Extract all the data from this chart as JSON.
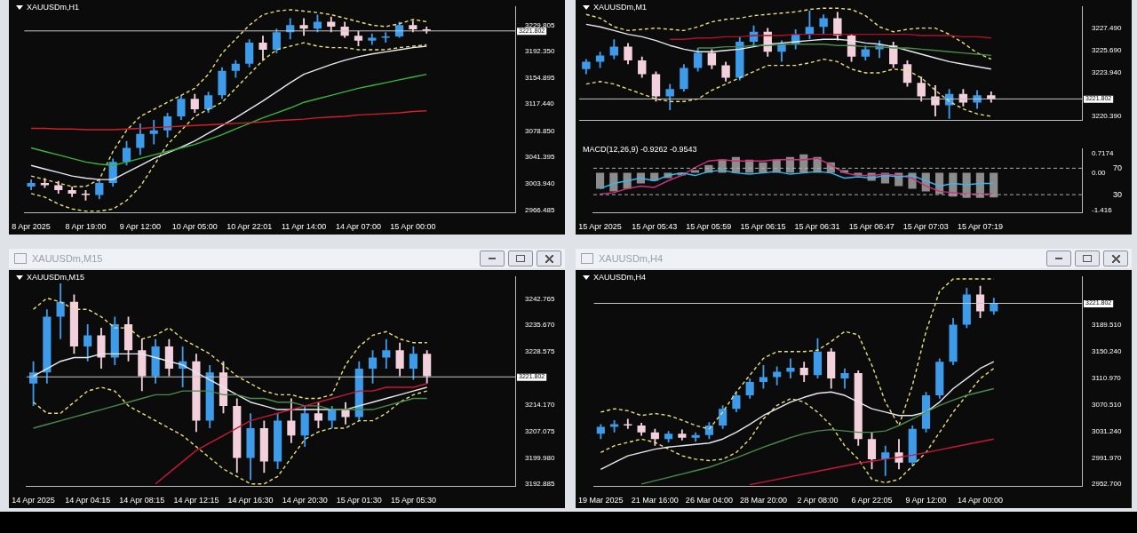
{
  "chart_data": [
    {
      "type": "candlestick",
      "title": "XAUUSDm,H1",
      "categories": [
        "8 Apr 2025",
        null,
        null,
        null,
        "8 Apr 19:00",
        null,
        null,
        null,
        "9 Apr 12:00",
        null,
        null,
        null,
        "10 Apr 05:00",
        null,
        null,
        null,
        "10 Apr 22:01",
        null,
        null,
        null,
        "11 Apr 14:00",
        null,
        null,
        null,
        "14 Apr 07:00",
        null,
        null,
        null,
        "15 Apr 00:00",
        null,
        null,
        null,
        null,
        null,
        null,
        null
      ],
      "ohlc": [
        [
          3000,
          3010,
          2995,
          3005
        ],
        [
          3005,
          3012,
          2998,
          3002
        ],
        [
          3002,
          3008,
          2990,
          2995
        ],
        [
          2995,
          3000,
          2985,
          2990
        ],
        [
          2990,
          2995,
          2980,
          2988
        ],
        [
          2988,
          3010,
          2982,
          3005
        ],
        [
          3005,
          3040,
          3000,
          3035
        ],
        [
          3035,
          3065,
          3030,
          3055
        ],
        [
          3055,
          3090,
          3045,
          3075
        ],
        [
          3075,
          3095,
          3060,
          3080
        ],
        [
          3080,
          3105,
          3070,
          3100
        ],
        [
          3100,
          3130,
          3095,
          3125
        ],
        [
          3125,
          3132,
          3105,
          3110
        ],
        [
          3110,
          3135,
          3105,
          3130
        ],
        [
          3130,
          3170,
          3125,
          3165
        ],
        [
          3165,
          3180,
          3155,
          3175
        ],
        [
          3175,
          3210,
          3170,
          3205
        ],
        [
          3205,
          3215,
          3180,
          3195
        ],
        [
          3195,
          3225,
          3190,
          3220
        ],
        [
          3220,
          3240,
          3210,
          3230
        ],
        [
          3230,
          3240,
          3215,
          3225
        ],
        [
          3225,
          3245,
          3220,
          3235
        ],
        [
          3235,
          3242,
          3220,
          3228
        ],
        [
          3228,
          3235,
          3212,
          3215
        ],
        [
          3215,
          3222,
          3200,
          3208
        ],
        [
          3208,
          3218,
          3202,
          3212
        ],
        [
          3212,
          3220,
          3205,
          3214
        ],
        [
          3214,
          3235,
          3212,
          3230
        ],
        [
          3230,
          3236,
          3220,
          3224
        ],
        [
          3224,
          3228,
          3218,
          3222
        ],
        null,
        null,
        null,
        null,
        null,
        null
      ],
      "colors": [
        "#3d9be9",
        "#f2d0dc",
        "#f2d0dc",
        "#f2d0dc",
        "#f2d0dc",
        "#3d9be9",
        "#3d9be9",
        "#3d9be9",
        "#3d9be9",
        "#3d9be9",
        "#3d9be9",
        "#3d9be9",
        "#f2d0dc",
        "#3d9be9",
        "#3d9be9",
        "#3d9be9",
        "#3d9be9",
        "#f2d0dc",
        "#3d9be9",
        "#3d9be9",
        "#f2d0dc",
        "#3d9be9",
        "#f2d0dc",
        "#f2d0dc",
        "#f2d0dc",
        "#3d9be9",
        "#3d9be9",
        "#3d9be9",
        "#f2d0dc",
        "#f2d0dc",
        null,
        null,
        null,
        null,
        null,
        null
      ],
      "series": [
        {
          "type": "line",
          "color": "#d0202a",
          "values": [
            3083,
            3083,
            3082,
            3082,
            3081,
            3081,
            3081,
            3082,
            3083,
            3084,
            3085,
            3086,
            3087,
            3088,
            3089,
            3090,
            3091,
            3092,
            3094,
            3095,
            3096,
            3098,
            3099,
            3100,
            3102,
            3103,
            3104,
            3105,
            3107,
            3108,
            null,
            null,
            null,
            null,
            null,
            null
          ]
        },
        {
          "type": "line",
          "color": "#3cb43c",
          "values": [
            3055,
            3050,
            3045,
            3040,
            3035,
            3032,
            3030,
            3035,
            3040,
            3045,
            3050,
            3055,
            3060,
            3067,
            3074,
            3082,
            3090,
            3098,
            3105,
            3112,
            3120,
            3125,
            3130,
            3135,
            3140,
            3144,
            3148,
            3152,
            3156,
            3160,
            null,
            null,
            null,
            null,
            null,
            null
          ]
        },
        {
          "type": "line",
          "color": "#e8e8f0",
          "values": [
            3030,
            3025,
            3020,
            3015,
            3012,
            3010,
            3010,
            3020,
            3030,
            3040,
            3048,
            3056,
            3065,
            3076,
            3087,
            3098,
            3110,
            3122,
            3135,
            3148,
            3160,
            3167,
            3174,
            3180,
            3185,
            3189,
            3192,
            3195,
            3198,
            3200,
            null,
            null,
            null,
            null,
            null,
            null
          ]
        },
        {
          "type": "line",
          "color": "#e8e07a",
          "line_style": "dashed",
          "values": [
            3015,
            3010,
            3005,
            3000,
            3000,
            3010,
            3050,
            3080,
            3100,
            3110,
            3120,
            3130,
            3140,
            3160,
            3190,
            3210,
            3230,
            3245,
            3250,
            3252,
            3250,
            3248,
            3245,
            3240,
            3235,
            3230,
            3228,
            3232,
            3238,
            3235,
            null,
            null,
            null,
            null,
            null,
            null
          ]
        },
        {
          "type": "line",
          "color": "#e8e07a",
          "line_style": "dashed",
          "values": [
            2990,
            2985,
            2975,
            2968,
            2965,
            2965,
            2968,
            2980,
            3000,
            3030,
            3060,
            3080,
            3100,
            3110,
            3120,
            3140,
            3160,
            3180,
            3195,
            3200,
            3205,
            3200,
            3198,
            3198,
            3195,
            3195,
            3195,
            3198,
            3200,
            3202,
            null,
            null,
            null,
            null,
            null,
            null
          ]
        }
      ],
      "ylim": [
        2963,
        3256
      ],
      "yticks": [
        {
          "value": 2966.485,
          "label": "2966.485"
        },
        {
          "value": 3003.94,
          "label": "3003.940"
        },
        {
          "value": 3041.395,
          "label": "3041.395"
        },
        {
          "value": 3078.85,
          "label": "3078.850"
        },
        {
          "value": 3117.44,
          "label": "3117.440"
        },
        {
          "value": 3154.895,
          "label": "3154.895"
        },
        {
          "value": 3192.35,
          "label": "3192.350"
        },
        {
          "value": 3229.805,
          "label": "3229.805"
        }
      ],
      "ref_lines": [
        {
          "axis": "y",
          "value": 3221.802,
          "label": "3221.802",
          "color": "#c8c8c8"
        }
      ]
    },
    {
      "type": "candlestick",
      "title": "XAUUSDm,M1",
      "categories": [
        null,
        null,
        null,
        null,
        null,
        null,
        null,
        null,
        null,
        null,
        null,
        null,
        null,
        null,
        null,
        null,
        null,
        null,
        null,
        null,
        null,
        null,
        null,
        null,
        null,
        null,
        null,
        null,
        null,
        null,
        null,
        null,
        null,
        null,
        null,
        null
      ],
      "ohlc": [
        [
          3224.2,
          3225.0,
          3223.8,
          3224.8
        ],
        [
          3224.8,
          3225.6,
          3224.3,
          3225.3
        ],
        [
          3225.3,
          3226.6,
          3225.0,
          3226.0
        ],
        [
          3226.0,
          3226.3,
          3224.6,
          3224.9
        ],
        [
          3224.9,
          3225.2,
          3223.5,
          3223.8
        ],
        [
          3223.8,
          3224.0,
          3221.6,
          3222.0
        ],
        [
          3222.0,
          3223.0,
          3220.9,
          3222.6
        ],
        [
          3222.6,
          3224.6,
          3222.4,
          3224.3
        ],
        [
          3224.3,
          3225.9,
          3224.0,
          3225.5
        ],
        [
          3225.5,
          3225.8,
          3224.2,
          3224.5
        ],
        [
          3224.5,
          3224.8,
          3223.2,
          3223.5
        ],
        [
          3223.5,
          3226.8,
          3223.3,
          3226.4
        ],
        [
          3226.4,
          3227.7,
          3226.0,
          3227.2
        ],
        [
          3227.2,
          3227.5,
          3225.2,
          3225.6
        ],
        [
          3225.6,
          3226.5,
          3224.8,
          3226.2
        ],
        [
          3226.2,
          3227.4,
          3225.8,
          3227.0
        ],
        [
          3227.0,
          3228.9,
          3226.6,
          3227.6
        ],
        [
          3227.6,
          3228.6,
          3227.0,
          3228.3
        ],
        [
          3228.3,
          3228.8,
          3226.5,
          3226.9
        ],
        [
          3226.9,
          3227.0,
          3224.8,
          3225.2
        ],
        [
          3225.2,
          3226.1,
          3224.9,
          3225.8
        ],
        [
          3225.8,
          3226.5,
          3225.1,
          3226.1
        ],
        [
          3226.1,
          3226.4,
          3224.3,
          3224.6
        ],
        [
          3224.6,
          3224.9,
          3222.8,
          3223.1
        ],
        [
          3223.1,
          3223.6,
          3221.6,
          3222.0
        ],
        [
          3222.0,
          3222.9,
          3220.4,
          3221.3
        ],
        [
          3221.3,
          3222.6,
          3220.2,
          3222.2
        ],
        [
          3222.2,
          3222.6,
          3221.2,
          3221.5
        ],
        [
          3221.5,
          3222.5,
          3221.0,
          3222.1
        ],
        [
          3222.1,
          3222.4,
          3221.5,
          3221.8
        ],
        null,
        null,
        null,
        null,
        null,
        null
      ],
      "colors": [
        "#3d9be9",
        "#3d9be9",
        "#3d9be9",
        "#f2d0dc",
        "#f2d0dc",
        "#f2d0dc",
        "#3d9be9",
        "#3d9be9",
        "#3d9be9",
        "#f2d0dc",
        "#f2d0dc",
        "#3d9be9",
        "#3d9be9",
        "#f2d0dc",
        "#3d9be9",
        "#3d9be9",
        "#3d9be9",
        "#3d9be9",
        "#f2d0dc",
        "#f2d0dc",
        "#3d9be9",
        "#3d9be9",
        "#f2d0dc",
        "#f2d0dc",
        "#f2d0dc",
        "#f2d0dc",
        "#3d9be9",
        "#f2d0dc",
        "#3d9be9",
        "#f2d0dc",
        null,
        null,
        null,
        null,
        null,
        null
      ],
      "series": [
        {
          "type": "line",
          "color": "#b0102a",
          "values": [
            null,
            null,
            null,
            null,
            null,
            null,
            3226.6,
            3226.6,
            3226.7,
            3226.7,
            3226.8,
            3226.8,
            3226.9,
            3226.9,
            3226.9,
            3227.0,
            3227.0,
            3227.0,
            3227.0,
            3227.0,
            3227.0,
            3227.0,
            3227.0,
            3227.0,
            3226.9,
            3226.9,
            3226.9,
            3226.8,
            3226.8,
            3226.7,
            null,
            null,
            null,
            null,
            null,
            null
          ]
        },
        {
          "type": "line",
          "color": "#4a8a4a",
          "values": [
            null,
            null,
            null,
            null,
            null,
            null,
            null,
            null,
            3225.9,
            3225.9,
            3226.0,
            3226.0,
            3226.1,
            3226.1,
            3226.2,
            3226.2,
            3226.2,
            3226.2,
            3226.1,
            3226.1,
            3226.0,
            3226.0,
            3225.9,
            3225.9,
            3225.8,
            3225.7,
            3225.6,
            3225.5,
            3225.4,
            3225.3,
            null,
            null,
            null,
            null,
            null,
            null
          ]
        },
        {
          "type": "line",
          "color": "#e8e8f0",
          "values": [
            3227.8,
            3227.6,
            3227.3,
            3227.0,
            3226.8,
            3226.5,
            3226.1,
            3225.8,
            3225.6,
            3225.6,
            3225.7,
            3225.8,
            3226.0,
            3226.2,
            3226.3,
            3226.4,
            3226.5,
            3226.6,
            3226.6,
            3226.5,
            3226.3,
            3226.2,
            3226.0,
            3225.7,
            3225.4,
            3225.1,
            3224.8,
            3224.6,
            3224.4,
            3224.2,
            null,
            null,
            null,
            null,
            null,
            null
          ]
        },
        {
          "type": "line",
          "color": "#e8e07a",
          "line_style": "dashed",
          "values": [
            3228.6,
            3228.3,
            3227.6,
            3227.3,
            3227.4,
            3227.5,
            3227.4,
            3227.3,
            3227.6,
            3228.0,
            3228.2,
            3228.3,
            3228.5,
            3228.6,
            3228.7,
            3228.8,
            3229.0,
            3229.1,
            3229.1,
            3229.0,
            3228.5,
            3227.6,
            3227.2,
            3227.4,
            3227.5,
            3227.5,
            3227.0,
            3226.3,
            3225.5,
            3225.0,
            null,
            null,
            null,
            null,
            null,
            null
          ]
        },
        {
          "type": "line",
          "color": "#e8e07a",
          "line_style": "dashed",
          "values": [
            3223.0,
            3223.2,
            3223.0,
            3222.6,
            3222.2,
            3221.8,
            3221.6,
            3221.6,
            3221.8,
            3222.5,
            3223.0,
            3223.5,
            3224.0,
            3224.5,
            3224.5,
            3224.5,
            3224.7,
            3225.0,
            3224.8,
            3224.2,
            3223.9,
            3223.9,
            3224.2,
            3224.1,
            3223.5,
            3222.5,
            3221.6,
            3221.0,
            3220.6,
            3220.4,
            null,
            null,
            null,
            null,
            null,
            null
          ]
        }
      ],
      "ylim": [
        3220.1,
        3229.2
      ],
      "yticks": [
        {
          "value": 3220.39,
          "label": "3220.390"
        },
        {
          "value": 3223.94,
          "label": "3223.940"
        },
        {
          "value": 3225.69,
          "label": "3225.690"
        },
        {
          "value": 3227.49,
          "label": "3227.490"
        }
      ],
      "ref_lines": [
        {
          "axis": "y",
          "value": 3221.802,
          "label": "3221.802",
          "color": "#c8c8c8"
        }
      ]
    },
    {
      "type": "bar",
      "title": "MACD(12,26,9) -0.9262 -0.9543",
      "categories": [
        "15 Apr 2025",
        null,
        null,
        null,
        "15 Apr 05:43",
        null,
        null,
        null,
        "15 Apr 05:59",
        null,
        null,
        null,
        "15 Apr 06:15",
        null,
        null,
        null,
        "15 Apr 06:31",
        null,
        null,
        null,
        "15 Apr 06:47",
        null,
        null,
        null,
        "15 Apr 07:03",
        null,
        null,
        null,
        "15 Apr 07:19",
        null,
        null,
        null,
        null,
        null,
        null,
        null
      ],
      "series": [
        {
          "type": "bar",
          "color": "#8c8c8c",
          "values": [
            -0.6,
            -0.7,
            -0.6,
            -0.4,
            -0.3,
            -0.2,
            -0.1,
            0.1,
            0.3,
            0.5,
            0.6,
            0.5,
            0.4,
            0.5,
            0.6,
            0.7,
            0.6,
            0.4,
            0.1,
            -0.1,
            -0.3,
            -0.4,
            -0.5,
            -0.6,
            -0.7,
            -0.8,
            -0.9,
            -0.95,
            -0.95,
            -0.93,
            null,
            null,
            null,
            null,
            null,
            null
          ]
        },
        {
          "type": "line",
          "color": "#38b8ec",
          "values": [
            -0.6,
            -0.4,
            -0.3,
            -0.2,
            -0.3,
            -0.1,
            0.0,
            -0.1,
            0.05,
            0.1,
            0.0,
            -0.05,
            0.0,
            0.05,
            -0.05,
            0.0,
            0.05,
            0.0,
            -0.2,
            -0.15,
            -0.2,
            -0.1,
            -0.15,
            -0.1,
            -0.3,
            -0.5,
            -0.4,
            -0.45,
            -0.4,
            -0.4,
            null,
            null,
            null,
            null,
            null,
            null
          ]
        },
        {
          "type": "line",
          "color": "#d0307a",
          "values": [
            -0.8,
            -0.75,
            -0.6,
            -0.5,
            -0.55,
            -0.3,
            -0.1,
            0.2,
            0.45,
            0.5,
            0.45,
            0.45,
            0.45,
            0.5,
            0.5,
            0.5,
            0.55,
            0.3,
            0.0,
            -0.1,
            -0.1,
            -0.05,
            -0.1,
            -0.2,
            -0.5,
            -0.7,
            -0.75,
            -0.8,
            -0.8,
            -0.8,
            null,
            null,
            null,
            null,
            null,
            null
          ]
        }
      ],
      "ylim": [
        -1.5,
        0.9
      ],
      "yticks": [
        -1.416,
        {
          "value": 0,
          "label": "0.00"
        },
        0.7174
      ],
      "y2lim": [
        3,
        99
      ],
      "y2ticks": [
        30,
        70
      ],
      "ref_lines": [
        {
          "axis": "y2",
          "value": 70,
          "color": "#b0b0b0",
          "line_style": "dashed"
        },
        {
          "axis": "y2",
          "value": 30,
          "color": "#b0b0b0",
          "line_style": "dashed"
        }
      ]
    },
    {
      "type": "candlestick",
      "title": "XAUUSDm,M15",
      "subtitle": "XAUUSDm,M15",
      "categories": [
        "14 Apr 2025",
        null,
        null,
        null,
        "14 Apr 04:15",
        null,
        null,
        null,
        "14 Apr 08:15",
        null,
        null,
        null,
        "14 Apr 12:15",
        null,
        null,
        null,
        "14 Apr 16:30",
        null,
        null,
        null,
        "14 Apr 20:30",
        null,
        null,
        null,
        "15 Apr 01:30",
        null,
        null,
        null,
        "15 Apr 05:30",
        null,
        null,
        null,
        null,
        null,
        null,
        null
      ],
      "ohlc": [
        [
          3220,
          3226,
          3214,
          3223
        ],
        [
          3223,
          3240,
          3220,
          3238
        ],
        [
          3238,
          3247,
          3232,
          3242
        ],
        [
          3242,
          3244,
          3228,
          3230
        ],
        [
          3230,
          3236,
          3226,
          3233
        ],
        [
          3233,
          3235,
          3224,
          3227
        ],
        [
          3227,
          3238,
          3225,
          3236
        ],
        [
          3236,
          3238,
          3226,
          3229
        ],
        [
          3229,
          3232,
          3218,
          3222
        ],
        [
          3222,
          3232,
          3220,
          3230
        ],
        [
          3230,
          3232,
          3222,
          3224
        ],
        [
          3224,
          3230,
          3219,
          3226
        ],
        [
          3226,
          3228,
          3207,
          3210
        ],
        [
          3210,
          3225,
          3208,
          3223
        ],
        [
          3223,
          3226,
          3212,
          3214
        ],
        [
          3214,
          3216,
          3196,
          3200
        ],
        [
          3200,
          3212,
          3194,
          3208
        ],
        [
          3208,
          3210,
          3196,
          3199
        ],
        [
          3199,
          3212,
          3197,
          3210
        ],
        [
          3210,
          3216,
          3204,
          3206
        ],
        [
          3206,
          3214,
          3203,
          3212
        ],
        [
          3212,
          3215,
          3208,
          3210
        ],
        [
          3210,
          3214,
          3208,
          3213
        ],
        [
          3213,
          3215,
          3209,
          3211
        ],
        [
          3211,
          3226,
          3210,
          3224
        ],
        [
          3224,
          3229,
          3220,
          3227
        ],
        [
          3227,
          3232,
          3224,
          3229
        ],
        [
          3229,
          3231,
          3222,
          3224
        ],
        [
          3224,
          3230,
          3221,
          3228
        ],
        [
          3228,
          3229,
          3220,
          3222
        ],
        null,
        null,
        null,
        null,
        null,
        null
      ],
      "colors": [
        "#3d9be9",
        "#3d9be9",
        "#3d9be9",
        "#f2d0dc",
        "#3d9be9",
        "#f2d0dc",
        "#3d9be9",
        "#f2d0dc",
        "#f2d0dc",
        "#3d9be9",
        "#f2d0dc",
        "#3d9be9",
        "#f2d0dc",
        "#3d9be9",
        "#f2d0dc",
        "#f2d0dc",
        "#3d9be9",
        "#f2d0dc",
        "#3d9be9",
        "#f2d0dc",
        "#3d9be9",
        "#f2d0dc",
        "#3d9be9",
        "#f2d0dc",
        "#3d9be9",
        "#3d9be9",
        "#3d9be9",
        "#f2d0dc",
        "#3d9be9",
        "#f2d0dc",
        null,
        null,
        null,
        null,
        null,
        null
      ],
      "series": [
        {
          "type": "line",
          "color": "#c8183a",
          "values": [
            null,
            null,
            null,
            null,
            null,
            null,
            null,
            null,
            null,
            3193,
            3196,
            3199,
            3202,
            3204,
            3206,
            3208,
            3210,
            3211,
            3212,
            3213,
            3214,
            3215,
            3216,
            3217,
            3218,
            3218,
            3219,
            3219,
            3219,
            3220,
            null,
            null,
            null,
            null,
            null,
            null
          ]
        },
        {
          "type": "line",
          "color": "#4a8a4a",
          "values": [
            3208,
            3209,
            3210,
            3211,
            3212,
            3213,
            3214,
            3215,
            3216,
            3217,
            3217,
            3218,
            3218,
            3218,
            3217,
            3217,
            3216,
            3216,
            3215,
            3215,
            3214,
            3214,
            3213,
            3213,
            3213,
            3213,
            3214,
            3215,
            3216,
            3216,
            null,
            null,
            null,
            null,
            null,
            null
          ]
        },
        {
          "type": "line",
          "color": "#e8e8f0",
          "values": [
            3222,
            3224,
            3226,
            3227,
            3227,
            3228,
            3228,
            3228,
            3228,
            3227,
            3226,
            3225,
            3223,
            3221,
            3219,
            3217,
            3215,
            3214,
            3213,
            3213,
            3213,
            3213,
            3213,
            3213,
            3214,
            3215,
            3216,
            3217,
            3218,
            3219,
            null,
            null,
            null,
            null,
            null,
            null
          ]
        },
        {
          "type": "line",
          "color": "#e8e07a",
          "line_style": "dashed",
          "values": [
            3240,
            3243,
            3242,
            3240,
            3240,
            3238,
            3235,
            3235,
            3232,
            3233,
            3235,
            3232,
            3230,
            3228,
            3225,
            3222,
            3220,
            3218,
            3217,
            3217,
            3216,
            3216,
            3217,
            3225,
            3230,
            3233,
            3234,
            3232,
            3231,
            3231,
            null,
            null,
            null,
            null,
            null,
            null
          ]
        },
        {
          "type": "line",
          "color": "#e8e07a",
          "line_style": "dashed",
          "values": [
            3215,
            3212,
            3212,
            3215,
            3218,
            3219,
            3218,
            3214,
            3212,
            3210,
            3208,
            3206,
            3203,
            3200,
            3197,
            3195,
            3193,
            3193,
            3195,
            3200,
            3205,
            3207,
            3208,
            3208,
            3210,
            3210,
            3212,
            3215,
            3217,
            3218,
            null,
            null,
            null,
            null,
            null,
            null
          ]
        }
      ],
      "ylim": [
        3192.4,
        3248.7
      ],
      "yticks": [
        3192.885,
        {
          "value": 3199.98,
          "label": "3199.980"
        },
        3207.075,
        {
          "value": 3214.17,
          "label": "3214.170"
        },
        {
          "value": 3228.575,
          "label": "3228.575"
        },
        {
          "value": 3235.67,
          "label": "3235.670"
        },
        3242.765
      ],
      "ref_lines": [
        {
          "axis": "y",
          "value": 3221.802,
          "label": "3221.802",
          "color": "#c8c8c8"
        }
      ]
    },
    {
      "type": "candlestick",
      "title": "XAUUSDm,H4",
      "subtitle": "XAUUSDm,H4",
      "categories": [
        "19 Mar 2025",
        null,
        null,
        null,
        "21 Mar 16:00",
        null,
        null,
        null,
        "26 Mar 04:00",
        null,
        null,
        null,
        "28 Mar 20:00",
        null,
        null,
        null,
        "2 Apr 08:00",
        null,
        null,
        null,
        "6 Apr 22:05",
        null,
        null,
        null,
        "9 Apr 12:00",
        null,
        null,
        null,
        "14 Apr 00:00",
        null,
        null,
        null,
        null,
        null,
        null,
        null
      ],
      "ohlc": [
        [
          3028,
          3042,
          3020,
          3038
        ],
        [
          3038,
          3048,
          3030,
          3042
        ],
        [
          3042,
          3050,
          3035,
          3040
        ],
        [
          3040,
          3044,
          3025,
          3030
        ],
        [
          3030,
          3035,
          3010,
          3020
        ],
        [
          3020,
          3032,
          3015,
          3028
        ],
        [
          3028,
          3034,
          3018,
          3022
        ],
        [
          3022,
          3030,
          3016,
          3026
        ],
        [
          3026,
          3045,
          3020,
          3040
        ],
        [
          3040,
          3070,
          3035,
          3065
        ],
        [
          3065,
          3090,
          3060,
          3085
        ],
        [
          3085,
          3110,
          3080,
          3105
        ],
        [
          3105,
          3130,
          3095,
          3112
        ],
        [
          3112,
          3128,
          3100,
          3120
        ],
        [
          3120,
          3140,
          3110,
          3126
        ],
        [
          3126,
          3135,
          3105,
          3115
        ],
        [
          3115,
          3170,
          3110,
          3150
        ],
        [
          3150,
          3155,
          3095,
          3110
        ],
        [
          3110,
          3125,
          3095,
          3118
        ],
        [
          3118,
          3122,
          3010,
          3020
        ],
        [
          3020,
          3030,
          2975,
          2990
        ],
        [
          2990,
          3010,
          2965,
          3000
        ],
        [
          3000,
          3020,
          2975,
          2985
        ],
        [
          2985,
          3040,
          2980,
          3035
        ],
        [
          3035,
          3090,
          3030,
          3085
        ],
        [
          3085,
          3140,
          3080,
          3135
        ],
        [
          3135,
          3200,
          3130,
          3190
        ],
        [
          3190,
          3245,
          3185,
          3235
        ],
        [
          3235,
          3248,
          3200,
          3210
        ],
        [
          3210,
          3230,
          3205,
          3222
        ],
        null,
        null,
        null,
        null,
        null,
        null
      ],
      "colors": [
        "#3d9be9",
        "#3d9be9",
        "#f2d0dc",
        "#f2d0dc",
        "#f2d0dc",
        "#3d9be9",
        "#f2d0dc",
        "#3d9be9",
        "#3d9be9",
        "#3d9be9",
        "#3d9be9",
        "#3d9be9",
        "#3d9be9",
        "#3d9be9",
        "#3d9be9",
        "#f2d0dc",
        "#3d9be9",
        "#f2d0dc",
        "#3d9be9",
        "#f2d0dc",
        "#f2d0dc",
        "#3d9be9",
        "#f2d0dc",
        "#3d9be9",
        "#3d9be9",
        "#3d9be9",
        "#3d9be9",
        "#3d9be9",
        "#f2d0dc",
        "#3d9be9",
        null,
        null,
        null,
        null,
        null,
        null
      ],
      "series": [
        {
          "type": "line",
          "color": "#c8183a",
          "values": [
            null,
            null,
            null,
            null,
            null,
            null,
            null,
            null,
            null,
            null,
            null,
            2952,
            2956,
            2960,
            2964,
            2968,
            2972,
            2976,
            2980,
            2984,
            2987,
            2990,
            2993,
            2996,
            3000,
            3004,
            3008,
            3012,
            3016,
            3020,
            null,
            null,
            null,
            null,
            null,
            null
          ]
        },
        {
          "type": "line",
          "color": "#4a8a4a",
          "values": [
            null,
            null,
            null,
            2953,
            2958,
            2963,
            2968,
            2973,
            2978,
            2985,
            2992,
            3000,
            3008,
            3015,
            3022,
            3028,
            3032,
            3034,
            3032,
            3030,
            3030,
            3032,
            3040,
            3050,
            3060,
            3070,
            3078,
            3085,
            3090,
            3095,
            null,
            null,
            null,
            null,
            null,
            null
          ]
        },
        {
          "type": "line",
          "color": "#e8e8f0",
          "values": [
            2975,
            2985,
            2995,
            3000,
            3005,
            3008,
            3010,
            3012,
            3014,
            3020,
            3030,
            3042,
            3055,
            3065,
            3075,
            3082,
            3088,
            3090,
            3085,
            3075,
            3065,
            3060,
            3055,
            3055,
            3060,
            3075,
            3095,
            3110,
            3125,
            3135,
            null,
            null,
            null,
            null,
            null,
            null
          ]
        },
        {
          "type": "line",
          "color": "#e8e07a",
          "line_style": "dashed",
          "values": [
            3060,
            3065,
            3062,
            3055,
            3058,
            3055,
            3048,
            3040,
            3035,
            3060,
            3090,
            3115,
            3140,
            3150,
            3150,
            3150,
            3152,
            3165,
            3180,
            3175,
            3130,
            3075,
            3040,
            3100,
            3180,
            3240,
            3258,
            3258,
            3258,
            3258,
            null,
            null,
            null,
            null,
            null,
            null
          ]
        },
        {
          "type": "line",
          "color": "#e8e07a",
          "line_style": "dashed",
          "values": [
            3000,
            3010,
            3015,
            3020,
            3015,
            3005,
            2995,
            2990,
            2988,
            2990,
            3000,
            3020,
            3050,
            3070,
            3080,
            3075,
            3060,
            3040,
            3010,
            2990,
            2960,
            2955,
            2960,
            2980,
            3000,
            3030,
            3060,
            3085,
            3110,
            3125,
            null,
            null,
            null,
            null,
            null,
            null
          ]
        }
      ],
      "ylim": [
        2950,
        3261
      ],
      "yticks": [
        {
          "value": 2952.7,
          "label": "2952.700"
        },
        {
          "value": 2991.97,
          "label": "2991.970"
        },
        {
          "value": 3031.24,
          "label": "3031.240"
        },
        {
          "value": 3070.51,
          "label": "3070.510"
        },
        {
          "value": 3110.97,
          "label": "3110.970"
        },
        {
          "value": 3150.24,
          "label": "3150.240"
        },
        {
          "value": 3189.51,
          "label": "3189.510"
        }
      ],
      "ref_lines": [
        {
          "axis": "y",
          "value": 3221.802,
          "label": "3221.802",
          "color": "#c8c8c8"
        }
      ]
    }
  ]
}
